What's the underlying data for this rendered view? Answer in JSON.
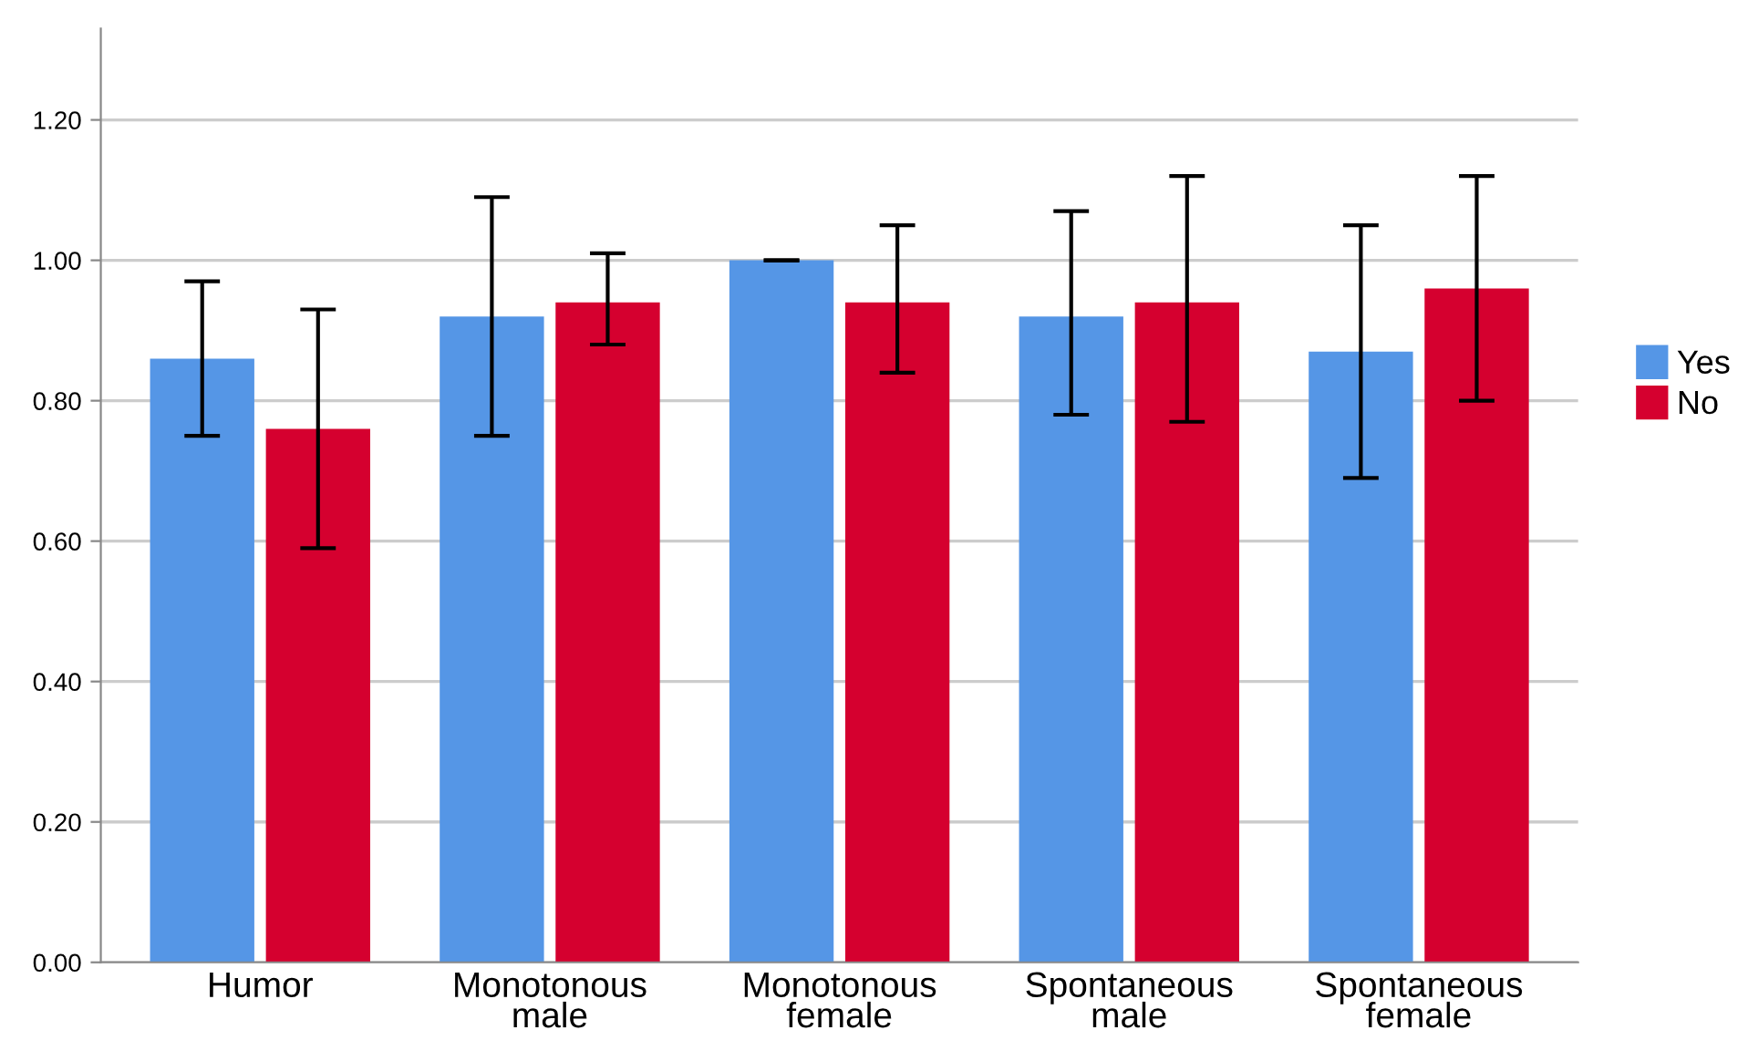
{
  "chart_data": {
    "type": "bar",
    "categories": [
      "Humor",
      "Monotonous\nmale",
      "Monotonous\nfemale",
      "Spontaneous\nmale",
      "Spontaneous\nfemale"
    ],
    "series": [
      {
        "name": "Yes",
        "color": "#5596e6",
        "values": [
          0.86,
          0.92,
          1.0,
          0.92,
          0.87
        ],
        "errors": [
          [
            0.75,
            0.97
          ],
          [
            0.75,
            1.09
          ],
          0,
          [
            0.78,
            1.07
          ],
          [
            0.69,
            1.05
          ]
        ]
      },
      {
        "name": "No",
        "color": "#d5002f",
        "values": [
          0.76,
          0.94,
          0.94,
          0.94,
          0.96
        ],
        "errors": [
          [
            0.59,
            0.93
          ],
          [
            0.88,
            1.01
          ],
          [
            0.84,
            1.05
          ],
          [
            0.77,
            1.12
          ],
          [
            0.8,
            1.12
          ]
        ]
      }
    ],
    "ylim": [
      0,
      1.33
    ],
    "yticks": [
      {
        "value": 0,
        "label": "0.00"
      },
      {
        "value": 0.2,
        "label": "0.20"
      },
      {
        "value": 0.4,
        "label": "0.40"
      },
      {
        "value": 0.6,
        "label": "0.60"
      },
      {
        "value": 0.8,
        "label": "0.80"
      },
      {
        "value": 1.0,
        "label": "1.00"
      },
      {
        "value": 1.2,
        "label": "1.20"
      }
    ],
    "grid": "y",
    "legend": "right"
  }
}
